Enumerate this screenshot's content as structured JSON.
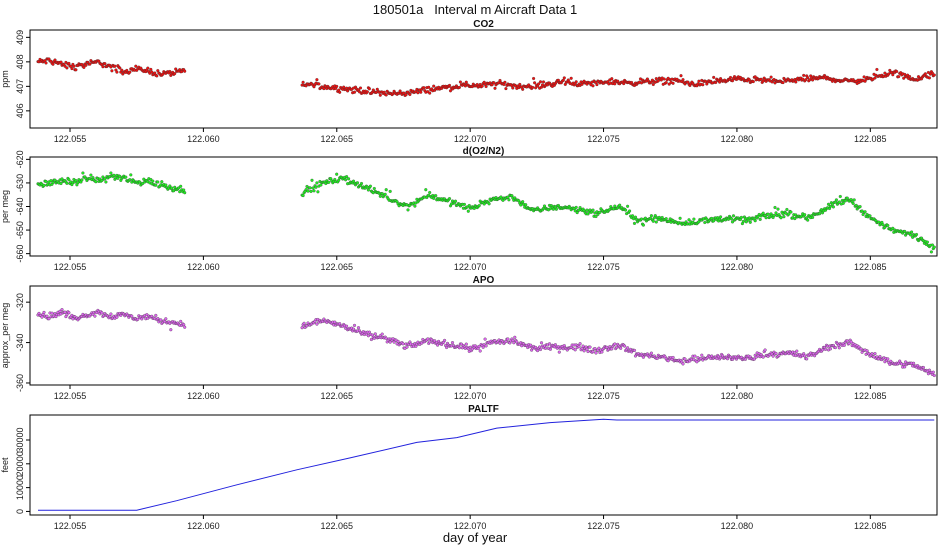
{
  "title": "180501a   Interval m Aircraft Data 1",
  "xlabel": "day of year",
  "chart_data": [
    {
      "type": "scatter",
      "title": "CO2",
      "ylabel": "ppm",
      "color": "#ee1111",
      "xlim": [
        122.0535,
        122.0875
      ],
      "ylim": [
        405.3,
        409.3
      ],
      "xticks": [
        "122.055",
        "122.060",
        "122.065",
        "122.070",
        "122.075",
        "122.080",
        "122.085"
      ],
      "yticks": [
        "406",
        "407",
        "408",
        "409"
      ],
      "segments": [
        {
          "x_start": 122.0538,
          "x_end": 122.0593,
          "y": [
            408.0,
            408.05,
            407.9,
            407.8,
            407.9,
            408.0,
            407.75,
            407.6,
            407.7,
            407.65,
            407.5,
            407.55,
            407.6
          ]
        },
        {
          "x_start": 122.0637,
          "x_end": 122.0874,
          "y": [
            407.1,
            407.0,
            406.9,
            406.8,
            406.7,
            406.75,
            406.9,
            407.0,
            407.05,
            407.1,
            407.0,
            407.05,
            407.2,
            407.1,
            407.2,
            407.15,
            407.2,
            407.25,
            407.1,
            407.2,
            407.3,
            407.25,
            407.2,
            407.3,
            407.35,
            407.2,
            407.3,
            407.6,
            407.3,
            407.5
          ]
        }
      ]
    },
    {
      "type": "scatter",
      "title": "d(O2/N2)",
      "ylabel": "per meg",
      "color": "#22ee22",
      "xlim": [
        122.0535,
        122.0875
      ],
      "ylim": [
        -661,
        -619
      ],
      "xticks": [
        "122.055",
        "122.060",
        "122.065",
        "122.070",
        "122.075",
        "122.080",
        "122.085"
      ],
      "yticks": [
        "-660",
        "-650",
        "-640",
        "-630",
        "-620"
      ],
      "segments": [
        {
          "x_start": 122.0538,
          "x_end": 122.0593,
          "y": [
            -631,
            -630,
            -629,
            -630,
            -628,
            -629,
            -627,
            -628,
            -630,
            -629,
            -631,
            -632,
            -633
          ]
        },
        {
          "x_start": 122.0637,
          "x_end": 122.0874,
          "y": [
            -634,
            -630,
            -628,
            -632,
            -636,
            -640,
            -635,
            -638,
            -641,
            -637,
            -636,
            -642,
            -640,
            -641,
            -643,
            -640,
            -646,
            -645,
            -647,
            -646,
            -645,
            -646,
            -644,
            -643,
            -645,
            -640,
            -637,
            -645,
            -650,
            -652,
            -657
          ]
        }
      ]
    },
    {
      "type": "scatter",
      "title": "APO",
      "ylabel": "approx_per meg",
      "color": "#dd66ee",
      "xlim": [
        122.0535,
        122.0875
      ],
      "ylim": [
        -361,
        -312
      ],
      "xticks": [
        "122.055",
        "122.060",
        "122.065",
        "122.070",
        "122.075",
        "122.080",
        "122.085"
      ],
      "yticks": [
        "-360",
        "-340",
        "-320"
      ],
      "segments": [
        {
          "x_start": 122.0538,
          "x_end": 122.0593,
          "y": [
            -326,
            -327,
            -325,
            -328,
            -326,
            -325,
            -327,
            -326,
            -328,
            -327,
            -329,
            -330,
            -331
          ]
        },
        {
          "x_start": 122.0637,
          "x_end": 122.0874,
          "y": [
            -332,
            -329,
            -332,
            -336,
            -338,
            -342,
            -339,
            -341,
            -343,
            -340,
            -339,
            -343,
            -342,
            -342,
            -344,
            -341,
            -346,
            -347,
            -349,
            -348,
            -347,
            -348,
            -346,
            -345,
            -347,
            -342,
            -340,
            -346,
            -350,
            -351,
            -356
          ]
        }
      ]
    },
    {
      "type": "line",
      "title": "PALTF",
      "ylabel": "feet",
      "color": "#2222dd",
      "xlim": [
        122.0535,
        122.0875
      ],
      "ylim": [
        -1500,
        40500
      ],
      "xticks": [
        "122.055",
        "122.060",
        "122.065",
        "122.070",
        "122.075",
        "122.080",
        "122.085"
      ],
      "yticks": [
        "0",
        "10000",
        "20000",
        "30000"
      ],
      "x": [
        122.0538,
        122.0575,
        122.059,
        122.0612,
        122.0635,
        122.0655,
        122.068,
        122.0695,
        122.071,
        122.073,
        122.075,
        122.0755,
        122.08,
        122.0874
      ],
      "values": [
        500,
        500,
        4500,
        11000,
        17500,
        22500,
        29000,
        31000,
        35000,
        37300,
        38700,
        38400,
        38400,
        38400
      ]
    }
  ]
}
